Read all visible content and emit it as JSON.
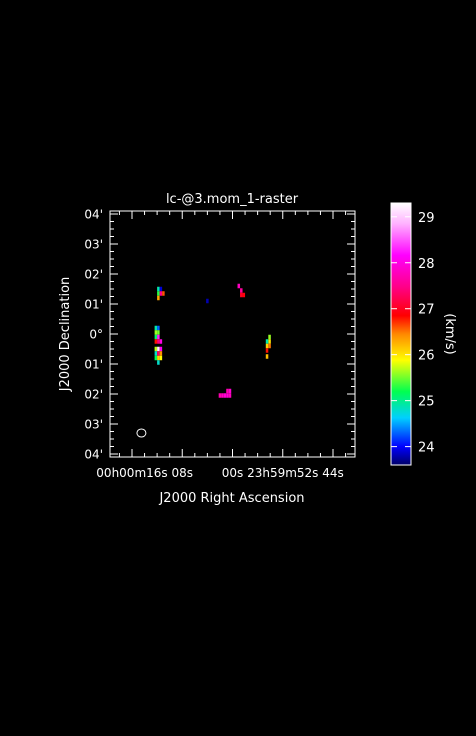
{
  "chart_data": {
    "type": "heatmap",
    "title": "lc-@3.mom_1-raster",
    "xlabel": "J2000 Right Ascension",
    "ylabel": "J2000 Declination",
    "x_ticks": [
      {
        "label": "00h00m16s",
        "value": 16
      },
      {
        "label": "08s",
        "value": 8
      },
      {
        "label": "00s",
        "value": 0
      },
      {
        "label": "23h59m52s",
        "value": -8
      },
      {
        "label": "44s",
        "value": -16
      }
    ],
    "x_range": [
      19.5,
      -19.5
    ],
    "y_ticks": [
      {
        "label": "04'",
        "value": 4
      },
      {
        "label": "03'",
        "value": 3
      },
      {
        "label": "02'",
        "value": 2
      },
      {
        "label": "01'",
        "value": 1
      },
      {
        "label": "0°",
        "value": 0
      },
      {
        "label": "01'",
        "value": -1
      },
      {
        "label": "02'",
        "value": -2
      },
      {
        "label": "03'",
        "value": -3
      },
      {
        "label": "04'",
        "value": -4
      }
    ],
    "y_range": [
      -4.1,
      4.1
    ],
    "colorbar": {
      "label": "(km/s)",
      "range": [
        23.6,
        29.3
      ],
      "ticks": [
        24,
        25,
        26,
        27,
        28,
        29
      ]
    },
    "pixels": [
      {
        "ra": 11.8,
        "dec": 1.5,
        "v": 24.9
      },
      {
        "ra": 11.8,
        "dec": 1.35,
        "v": 25.3
      },
      {
        "ra": 11.8,
        "dec": 1.2,
        "v": 26.3
      },
      {
        "ra": 11.4,
        "dec": 1.5,
        "v": 23.9
      },
      {
        "ra": 11.4,
        "dec": 1.35,
        "v": 27.5
      },
      {
        "ra": 11.0,
        "dec": 1.35,
        "v": 26.6
      },
      {
        "ra": 12.2,
        "dec": 0.2,
        "v": 24.9
      },
      {
        "ra": 12.2,
        "dec": 0.05,
        "v": 25.6
      },
      {
        "ra": 12.2,
        "dec": -0.1,
        "v": 25.1
      },
      {
        "ra": 12.2,
        "dec": -0.25,
        "v": 26.8
      },
      {
        "ra": 11.8,
        "dec": 0.2,
        "v": 24.3
      },
      {
        "ra": 11.8,
        "dec": 0.05,
        "v": 25.5
      },
      {
        "ra": 11.8,
        "dec": -0.1,
        "v": 28.3
      },
      {
        "ra": 11.8,
        "dec": -0.25,
        "v": 27.4
      },
      {
        "ra": 11.4,
        "dec": -0.25,
        "v": 28.0
      },
      {
        "ra": 12.2,
        "dec": -0.5,
        "v": 25.7
      },
      {
        "ra": 12.2,
        "dec": -0.65,
        "v": 24.8
      },
      {
        "ra": 12.2,
        "dec": -0.8,
        "v": 25.2
      },
      {
        "ra": 11.8,
        "dec": -0.5,
        "v": 29.2
      },
      {
        "ra": 11.8,
        "dec": -0.65,
        "v": 27.3
      },
      {
        "ra": 11.8,
        "dec": -0.8,
        "v": 26.1
      },
      {
        "ra": 11.8,
        "dec": -0.95,
        "v": 24.8
      },
      {
        "ra": 11.4,
        "dec": -0.5,
        "v": 28.1
      },
      {
        "ra": 11.4,
        "dec": -0.65,
        "v": 26.4
      },
      {
        "ra": 11.4,
        "dec": -0.8,
        "v": 25.9
      },
      {
        "ra": 4.0,
        "dec": 1.1,
        "v": 23.8
      },
      {
        "ra": -1.0,
        "dec": 1.6,
        "v": 27.8
      },
      {
        "ra": -1.4,
        "dec": 1.45,
        "v": 27.6
      },
      {
        "ra": -1.4,
        "dec": 1.3,
        "v": 27.0
      },
      {
        "ra": -1.8,
        "dec": 1.3,
        "v": 26.9
      },
      {
        "ra": -5.9,
        "dec": -0.1,
        "v": 25.6
      },
      {
        "ra": -5.9,
        "dec": -0.25,
        "v": 26.0
      },
      {
        "ra": -5.9,
        "dec": -0.4,
        "v": 26.5
      },
      {
        "ra": -5.5,
        "dec": -0.25,
        "v": 24.9
      },
      {
        "ra": -5.5,
        "dec": -0.4,
        "v": 26.1
      },
      {
        "ra": -5.5,
        "dec": -0.55,
        "v": 26.8
      },
      {
        "ra": -5.5,
        "dec": -0.75,
        "v": 26.2
      },
      {
        "ra": 2.0,
        "dec": -2.05,
        "v": 27.7
      },
      {
        "ra": 1.6,
        "dec": -2.05,
        "v": 27.8
      },
      {
        "ra": 1.2,
        "dec": -2.05,
        "v": 27.9
      },
      {
        "ra": 0.8,
        "dec": -2.05,
        "v": 27.9
      },
      {
        "ra": 0.4,
        "dec": -2.05,
        "v": 27.8
      },
      {
        "ra": 0.8,
        "dec": -1.9,
        "v": 27.7
      },
      {
        "ra": 0.4,
        "dec": -1.9,
        "v": 27.9
      }
    ],
    "beam": {
      "ra": 14.5,
      "dec": -3.3
    }
  }
}
